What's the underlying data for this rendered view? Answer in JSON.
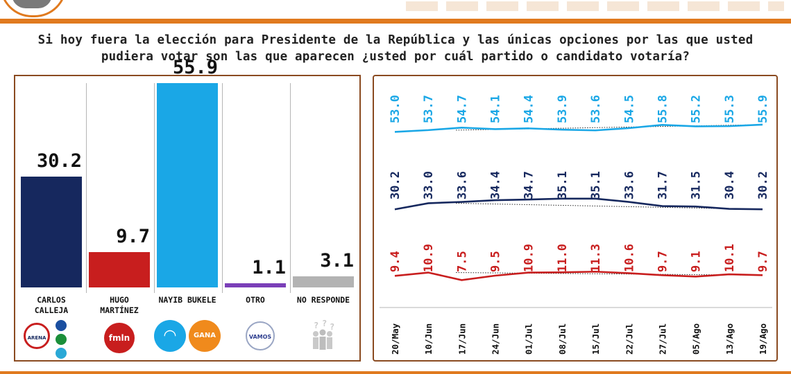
{
  "question": "Si hoy fuera la elección para Presidente de la República y las únicas opciones por las que usted pudiera votar son las que aparecen ¿usted por cuál partido o candidato votaría?",
  "colors": {
    "accent": "#e07a1f",
    "frame": "#8a4a20",
    "navy": "#16285e",
    "red": "#c81e1e",
    "cyan": "#1aa7e6",
    "purple": "#7a3fb8",
    "gray": "#b3b3b3"
  },
  "chart_data": [
    {
      "type": "bar",
      "categories": [
        "CARLOS\nCALLEJA",
        "HUGO\nMARTÍNEZ",
        "NAYIB BUKELE",
        "OTRO",
        "NO RESPONDE"
      ],
      "values": [
        30.2,
        9.7,
        55.9,
        1.1,
        3.1
      ],
      "value_labels": [
        "30.2",
        "9.7",
        "55.9",
        "1.1",
        "3.1"
      ],
      "colors": [
        "#16285e",
        "#c81e1e",
        "#1aa7e6",
        "#7a3fb8",
        "#b3b3b3"
      ],
      "party_logos": [
        {
          "icon": "arena-logo",
          "text": "ARENA"
        },
        {
          "icon": "fmln-logo",
          "text": "fmln"
        },
        {
          "icon": "gana-logo",
          "text": "GANA"
        },
        {
          "icon": "vamos-logo",
          "text": "VAMOS"
        },
        {
          "icon": "people-icon",
          "text": ""
        }
      ],
      "ylim": [
        0,
        70
      ]
    },
    {
      "type": "line",
      "x": [
        "20/May",
        "10/Jun",
        "17/Jun",
        "24/Jun",
        "01/Jul",
        "08/Jul",
        "15/Jul",
        "22/Jul",
        "27/Jul",
        "05/Ago",
        "13/Ago",
        "19/Ago"
      ],
      "series": [
        {
          "color": "#1aa7e6",
          "values": [
            53.0,
            53.7,
            54.7,
            54.1,
            54.4,
            53.9,
            53.6,
            54.5,
            55.8,
            55.2,
            55.3,
            55.9
          ],
          "labels": [
            "53.0",
            "53.7",
            "54.7",
            "54.1",
            "54.4",
            "53.9",
            "53.6",
            "54.5",
            "55.8",
            "55.2",
            "55.3",
            "55.9"
          ]
        },
        {
          "color": "#16285e",
          "values": [
            30.2,
            33.0,
            33.6,
            34.4,
            34.7,
            35.1,
            35.1,
            33.6,
            31.7,
            31.5,
            30.4,
            30.2
          ],
          "labels": [
            "30.2",
            "33.0",
            "33.6",
            "34.4",
            "34.7",
            "35.1",
            "35.1",
            "33.6",
            "31.7",
            "31.5",
            "30.4",
            "30.2"
          ]
        },
        {
          "color": "#c81e1e",
          "values": [
            9.4,
            10.9,
            7.5,
            9.5,
            10.9,
            11.0,
            11.3,
            10.6,
            9.7,
            9.1,
            10.1,
            9.7
          ],
          "labels": [
            "9.4",
            "10.9",
            "7.5",
            "9.5",
            "10.9",
            "11.0",
            "11.3",
            "10.6",
            "9.7",
            "9.1",
            "10.1",
            "9.7"
          ]
        }
      ],
      "trendlines": "dotted"
    }
  ]
}
